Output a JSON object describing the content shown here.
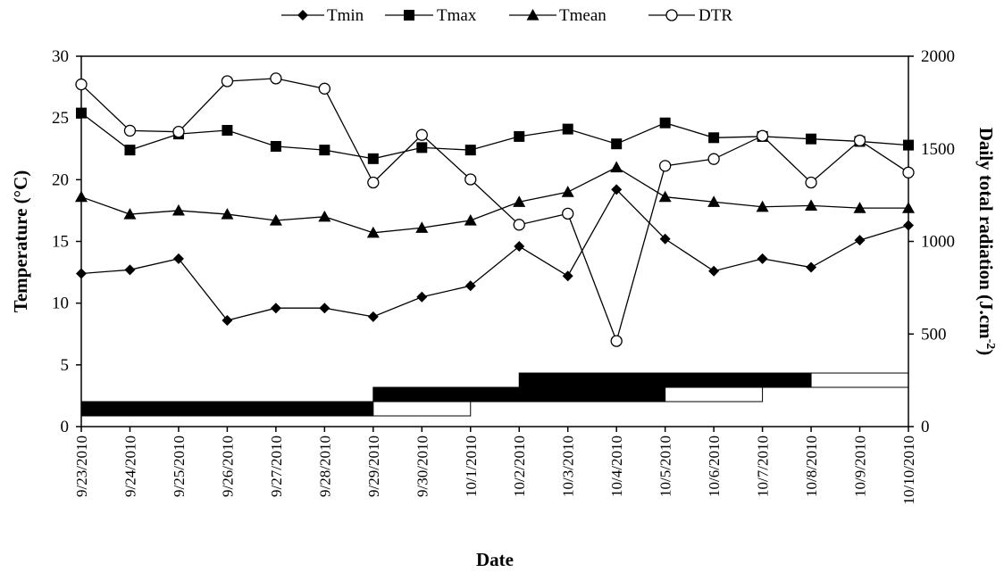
{
  "chart_data": {
    "type": "line",
    "xlabel": "Date",
    "ylabel": "Temperature (°C)",
    "y2label": "Daily total radiation (J.cm-2)",
    "y2label_main": "Daily total radiation (J.cm",
    "y2label_sup": "-2",
    "y2label_close": ")",
    "ylim": [
      0,
      30
    ],
    "y2lim": [
      0,
      2000
    ],
    "yticks": [
      "0",
      "5",
      "10",
      "15",
      "20",
      "25",
      "30"
    ],
    "y2ticks": [
      "0",
      "500",
      "1000",
      "1500",
      "2000"
    ],
    "grid": false,
    "legend_position": "top-center",
    "categories": [
      "9/23/2010",
      "9/24/2010",
      "9/25/2010",
      "9/26/2010",
      "9/27/2010",
      "9/28/2010",
      "9/29/2010",
      "9/30/2010",
      "10/1/2010",
      "10/2/2010",
      "10/3/2010",
      "10/4/2010",
      "10/5/2010",
      "10/6/2010",
      "10/7/2010",
      "10/8/2010",
      "10/9/2010",
      "10/10/2010"
    ],
    "series": [
      {
        "name": "Tmin",
        "marker": "diamond",
        "axis": "left",
        "values": [
          12.4,
          12.7,
          13.6,
          8.6,
          9.6,
          9.6,
          8.9,
          10.5,
          11.4,
          14.6,
          12.2,
          19.2,
          15.2,
          12.6,
          13.6,
          12.9,
          15.1,
          16.3
        ]
      },
      {
        "name": "Tmax",
        "marker": "square",
        "axis": "left",
        "values": [
          25.4,
          22.4,
          23.7,
          24.0,
          22.7,
          22.4,
          21.7,
          22.6,
          22.4,
          23.5,
          24.1,
          22.9,
          24.6,
          23.4,
          23.5,
          23.3,
          23.1,
          22.8
        ]
      },
      {
        "name": "Tmean",
        "marker": "triangle",
        "axis": "left",
        "values": [
          18.6,
          17.2,
          17.5,
          17.2,
          16.7,
          17.0,
          15.7,
          16.1,
          16.7,
          18.2,
          19.0,
          21.0,
          18.6,
          18.2,
          17.8,
          17.9,
          17.7,
          17.7
        ]
      },
      {
        "name": "DTR",
        "marker": "open-circle",
        "axis": "right",
        "values": [
          1848,
          1598,
          1592,
          1865,
          1880,
          1825,
          1318,
          1575,
          1335,
          1090,
          1150,
          462,
          1408,
          1445,
          1570,
          1318,
          1545,
          1372
        ]
      }
    ],
    "period_bars": [
      {
        "level": 1,
        "filled": [
          "9/23/2010",
          "9/29/2010"
        ],
        "open": [
          "9/29/2010",
          "10/1/2010"
        ]
      },
      {
        "level": 2,
        "filled": [
          "9/29/2010",
          "10/5/2010"
        ],
        "open": [
          "10/5/2010",
          "10/7/2010"
        ]
      },
      {
        "level": 3,
        "filled": [
          "10/2/2010",
          "10/8/2010"
        ],
        "open": [
          "10/8/2010",
          "10/10/2010"
        ]
      }
    ]
  }
}
